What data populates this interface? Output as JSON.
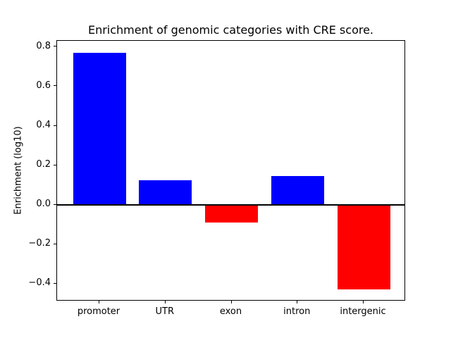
{
  "chart_data": {
    "type": "bar",
    "title": "Enrichment of genomic categories with CRE score.",
    "xlabel": "",
    "ylabel": "Enrichment (log10)",
    "categories": [
      "promoter",
      "UTR",
      "exon",
      "intron",
      "intergenic"
    ],
    "values": [
      0.77,
      0.125,
      -0.09,
      0.145,
      -0.43
    ],
    "bar_colors": [
      "#0000ff",
      "#0000ff",
      "#ff0000",
      "#0000ff",
      "#ff0000"
    ],
    "positive_color": "#0000ff",
    "negative_color": "#ff0000",
    "yticks": [
      -0.4,
      -0.2,
      0.0,
      0.2,
      0.4,
      0.6,
      0.8
    ],
    "ytick_labels": [
      "−0.4",
      "−0.2",
      "0.0",
      "0.2",
      "0.4",
      "0.6",
      "0.8"
    ],
    "ylim": [
      -0.49,
      0.83
    ],
    "xlim": [
      -0.64,
      4.64
    ],
    "bar_width": 0.8,
    "grid": false,
    "legend": null,
    "zero_line": true,
    "background_color": "#ffffff",
    "spine_color": "#000000"
  }
}
